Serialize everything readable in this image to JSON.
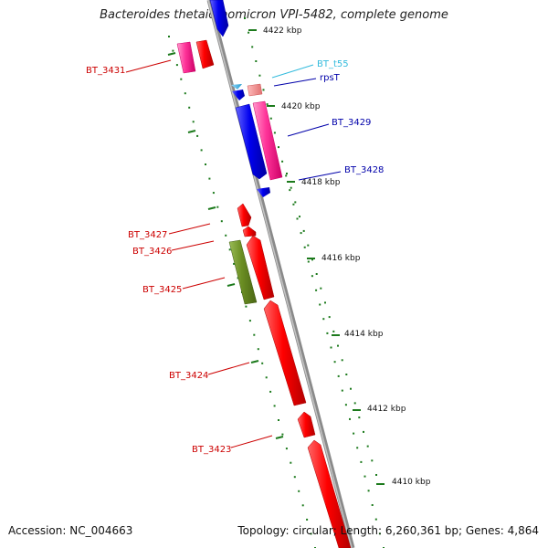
{
  "title": "Bacteroides thetaiotaomicron VPI-5482, complete genome",
  "footer": {
    "accession": "Accession: NC_004663",
    "summary": "Topology: circular; Length: 6,260,361 bp; Genes: 4,864"
  },
  "colors": {
    "backbone": "#8a8a8a",
    "scale_dots": "#1c7a1c",
    "label_red": "#cc0000",
    "label_blue": "#0000aa",
    "label_cyan": "#33bbdd"
  },
  "scale_labels": [
    "4422 kbp",
    "4420 kbp",
    "4418 kbp",
    "4416 kbp",
    "4414 kbp",
    "4412 kbp",
    "4410 kbp"
  ],
  "gene_labels": [
    "BT_3431",
    "BT_t55",
    "rpsT",
    "BT_3429",
    "BT_3428",
    "BT_3427",
    "BT_3426",
    "BT_3425",
    "BT_3424",
    "BT_3423"
  ]
}
